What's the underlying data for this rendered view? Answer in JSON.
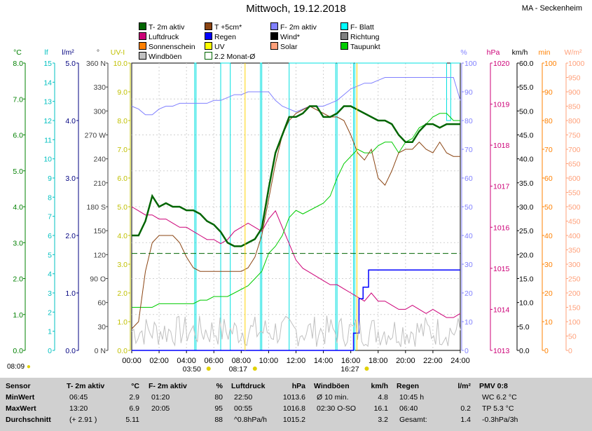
{
  "title": "Mittwoch, 19.12.2018",
  "station": "MA - Seckenheim",
  "legend": [
    {
      "label": "T- 2m aktiv",
      "color": "#006400"
    },
    {
      "label": "T +5cm*",
      "color": "#8b4513"
    },
    {
      "label": "F- 2m aktiv",
      "color": "#8080ff"
    },
    {
      "label": "F- Blatt",
      "color": "#00ffff"
    },
    {
      "label": "Luftdruck",
      "color": "#cc0077"
    },
    {
      "label": "Regen",
      "color": "#0000ff"
    },
    {
      "label": "Wind*",
      "color": "#000000"
    },
    {
      "label": "Richtung",
      "color": "#808080"
    },
    {
      "label": "Sonnenschein",
      "color": "#ff8000"
    },
    {
      "label": "UV",
      "color": "#ffff00"
    },
    {
      "label": "Solar",
      "color": "#ffa07a"
    },
    {
      "label": "Taupunkt",
      "color": "#00cc00"
    },
    {
      "label": "Windböen",
      "color": "#c0c0c0"
    },
    {
      "label": "2.2 Monat-Ø",
      "color": "#006400"
    }
  ],
  "axes": {
    "c": {
      "unit": "°C",
      "color": "#008000",
      "ticks": [
        "8.0",
        "7.0",
        "6.0",
        "5.0",
        "4.0",
        "3.0",
        "2.0",
        "1.0",
        "0.0"
      ]
    },
    "lf": {
      "unit": "lf",
      "color": "#00c0c0",
      "ticks": [
        "15",
        "14",
        "13",
        "12",
        "11",
        "10",
        "9",
        "8",
        "7",
        "6",
        "5",
        "4",
        "3",
        "2",
        "1",
        "0"
      ]
    },
    "lm": {
      "unit": "l/m²",
      "color": "#000080",
      "ticks": [
        "5.0",
        "4.0",
        "3.0",
        "2.0",
        "1.0",
        "0.0"
      ]
    },
    "dir": {
      "unit": "°",
      "color": "#404040",
      "ticks": [
        "360 N",
        "330",
        "300",
        "270 W",
        "240",
        "210",
        "180 S",
        "150",
        "120",
        "90 O",
        "60",
        "30",
        "0 N"
      ]
    },
    "uvi": {
      "unit": "UV-I",
      "color": "#c0c000",
      "ticks": [
        "10.0",
        "9.0",
        "8.0",
        "7.0",
        "6.0",
        "5.0",
        "4.0",
        "3.0",
        "2.0",
        "1.0",
        "0.0"
      ]
    },
    "pct": {
      "unit": "%",
      "color": "#8080ff",
      "ticks": [
        "100",
        "90",
        "80",
        "70",
        "60",
        "50",
        "40",
        "30",
        "20",
        "10",
        "0"
      ]
    },
    "hpa": {
      "unit": "hPa",
      "color": "#cc0077",
      "ticks": [
        "1020",
        "1019",
        "1018",
        "1017",
        "1016",
        "1015",
        "1014",
        "1013"
      ]
    },
    "kmh": {
      "unit": "km/h",
      "color": "#000000",
      "ticks": [
        "60.0",
        "55.0",
        "50.0",
        "45.0",
        "40.0",
        "35.0",
        "30.0",
        "25.0",
        "20.0",
        "15.0",
        "10.0",
        "5.0",
        "0.0"
      ]
    },
    "min": {
      "unit": "min",
      "color": "#ff8000",
      "ticks": [
        "100",
        "90",
        "80",
        "70",
        "60",
        "50",
        "40",
        "30",
        "20",
        "10",
        "0"
      ]
    },
    "wm2": {
      "unit": "W/m²",
      "color": "#ffa07a",
      "ticks": [
        "1000",
        "950",
        "900",
        "850",
        "800",
        "750",
        "700",
        "650",
        "600",
        "550",
        "500",
        "450",
        "400",
        "350",
        "300",
        "250",
        "200",
        "150",
        "100",
        "50",
        "0"
      ]
    }
  },
  "x_ticks": [
    "00:00",
    "02:00",
    "04:00",
    "06:00",
    "08:00",
    "10:00",
    "12:00",
    "14:00",
    "16:00",
    "18:00",
    "20:00",
    "22:00",
    "24:00"
  ],
  "sun": {
    "sunrise_left": "08:09",
    "dawn": "03:50",
    "rise": "08:17",
    "set": "16:27"
  },
  "chart_data": {
    "type": "line",
    "x_unit": "hours",
    "xlim": [
      0,
      24
    ],
    "series": [
      {
        "name": "T- 2m aktiv",
        "axis": "°C",
        "ylim": [
          0,
          8
        ],
        "x": [
          0,
          0.5,
          1,
          1.5,
          2,
          2.5,
          3,
          3.5,
          4,
          4.5,
          5,
          5.5,
          6,
          6.5,
          7,
          7.5,
          8,
          8.5,
          9,
          9.5,
          10,
          10.5,
          11,
          11.5,
          12,
          12.5,
          13,
          13.5,
          14,
          14.5,
          15,
          15.5,
          16,
          16.5,
          17,
          17.5,
          18,
          18.5,
          19,
          19.5,
          20,
          20.5,
          21,
          21.5,
          22,
          22.5,
          23,
          23.5,
          24
        ],
        "y": [
          3.2,
          3.2,
          3.6,
          4.3,
          4.0,
          4.1,
          4.0,
          4.0,
          3.9,
          3.9,
          3.8,
          3.6,
          3.5,
          3.3,
          3.0,
          2.9,
          2.9,
          3.0,
          3.1,
          3.4,
          4.5,
          5.5,
          6.0,
          6.5,
          6.5,
          6.6,
          6.8,
          6.8,
          6.5,
          6.5,
          6.6,
          6.8,
          6.8,
          6.7,
          6.6,
          6.5,
          6.4,
          6.4,
          6.3,
          6.0,
          5.8,
          5.8,
          6.1,
          6.3,
          6.3,
          6.2,
          6.3,
          6.3,
          6.3
        ]
      },
      {
        "name": "T +5cm*",
        "axis": "°C",
        "ylim": [
          0,
          8
        ],
        "x": [
          0,
          0.5,
          1,
          1.5,
          2,
          2.5,
          3,
          3.5,
          4,
          4.5,
          5,
          5.5,
          6,
          6.5,
          7,
          7.5,
          8,
          8.5,
          9,
          9.5,
          10,
          10.5,
          11,
          11.5,
          12,
          12.5,
          13,
          13.5,
          14,
          14.5,
          15,
          15.5,
          16,
          16.5,
          17,
          17.5,
          18,
          18.5,
          19,
          19.5,
          20,
          20.5,
          21,
          21.5,
          22,
          22.5,
          23,
          23.5,
          24
        ],
        "y": [
          0.6,
          0.8,
          2.2,
          3.0,
          3.2,
          3.2,
          3.2,
          3.0,
          2.6,
          2.3,
          2.2,
          2.2,
          2.2,
          2.2,
          2.2,
          2.2,
          2.2,
          2.3,
          2.6,
          3.2,
          4.2,
          5.2,
          6.0,
          6.4,
          6.6,
          6.7,
          6.8,
          6.7,
          6.6,
          6.5,
          6.5,
          6.4,
          6.0,
          5.5,
          5.3,
          5.6,
          4.8,
          4.6,
          5.0,
          5.5,
          5.6,
          5.6,
          5.8,
          5.6,
          5.5,
          5.8,
          5.5,
          5.4,
          5.4
        ]
      },
      {
        "name": "F- 2m aktiv",
        "axis": "%",
        "ylim": [
          0,
          100
        ],
        "x": [
          0,
          0.5,
          1,
          1.5,
          2,
          2.5,
          3,
          3.5,
          4,
          4.5,
          5,
          5.5,
          6,
          6.5,
          7,
          7.5,
          8,
          8.5,
          9,
          9.5,
          10,
          10.5,
          11,
          11.5,
          12,
          12.5,
          13,
          13.5,
          14,
          14.5,
          15,
          15.5,
          16,
          16.5,
          17,
          17.5,
          18,
          18.5,
          19,
          19.5,
          20,
          20.5,
          21,
          21.5,
          22,
          22.5,
          23,
          23.5,
          24
        ],
        "y": [
          85,
          84,
          82,
          82,
          84,
          85,
          85,
          86,
          86,
          86,
          86,
          86,
          87,
          87,
          88,
          89,
          89,
          90,
          90,
          90,
          90,
          87,
          85,
          84,
          83,
          84,
          85,
          85,
          85,
          86,
          87,
          89,
          91,
          92,
          93,
          93,
          94,
          95,
          95,
          95,
          95,
          95,
          95,
          95,
          95,
          95,
          95,
          95,
          87
        ]
      },
      {
        "name": "Luftdruck",
        "axis": "hPa",
        "ylim": [
          1013,
          1020
        ],
        "x": [
          0,
          0.5,
          1,
          1.5,
          2,
          2.5,
          3,
          3.5,
          4,
          4.5,
          5,
          5.5,
          6,
          6.5,
          7,
          7.5,
          8,
          8.5,
          9,
          9.5,
          10,
          10.5,
          11,
          11.5,
          12,
          12.5,
          13,
          13.5,
          14,
          14.5,
          15,
          15.5,
          16,
          16.5,
          17,
          17.5,
          18,
          18.5,
          19,
          19.5,
          20,
          20.5,
          21,
          21.5,
          22,
          22.5,
          23,
          23.5,
          24
        ],
        "y": [
          1016.5,
          1016.4,
          1016.3,
          1016.3,
          1016.2,
          1016.2,
          1016.1,
          1016.0,
          1016.0,
          1015.9,
          1015.8,
          1015.7,
          1015.7,
          1015.6,
          1015.7,
          1015.9,
          1016.0,
          1016.1,
          1016.0,
          1015.9,
          1016.2,
          1016.4,
          1016.0,
          1015.6,
          1015.2,
          1015.0,
          1014.9,
          1014.8,
          1014.7,
          1014.6,
          1014.6,
          1014.5,
          1014.4,
          1014.3,
          1014.2,
          1014.4,
          1014.2,
          1014.2,
          1014.1,
          1014.0,
          1014.0,
          1014.1,
          1014.0,
          1013.9,
          1014.0,
          1013.9,
          1013.8,
          1013.8,
          1013.9
        ]
      },
      {
        "name": "Taupunkt",
        "axis": "°C",
        "ylim": [
          0,
          8
        ],
        "x": [
          0,
          0.5,
          1,
          1.5,
          2,
          2.5,
          3,
          3.5,
          4,
          4.5,
          5,
          5.5,
          6,
          6.5,
          7,
          7.5,
          8,
          8.5,
          9,
          9.5,
          10,
          10.5,
          11,
          11.5,
          12,
          12.5,
          13,
          13.5,
          14,
          14.5,
          15,
          15.5,
          16,
          16.5,
          17,
          17.5,
          18,
          18.5,
          19,
          19.5,
          20,
          20.5,
          21,
          21.5,
          22,
          22.5,
          23,
          23.5,
          24
        ],
        "y": [
          1.2,
          1.2,
          1.2,
          1.2,
          1.3,
          1.3,
          1.3,
          1.3,
          1.3,
          1.3,
          1.4,
          1.4,
          1.5,
          1.5,
          1.5,
          1.6,
          1.7,
          1.8,
          2.0,
          2.2,
          2.7,
          2.9,
          3.2,
          3.7,
          3.9,
          3.8,
          3.9,
          4.0,
          4.1,
          4.3,
          4.8,
          5.2,
          5.4,
          5.6,
          5.5,
          5.5,
          5.7,
          5.8,
          5.8,
          5.5,
          5.8,
          5.9,
          6.2,
          6.3,
          6.5,
          6.6,
          6.6,
          6.4,
          6.4
        ]
      },
      {
        "name": "2.2 Monat-Ø",
        "axis": "°C",
        "ylim": [
          0,
          8
        ],
        "x": [
          0,
          24
        ],
        "y": [
          2.7,
          2.7
        ]
      },
      {
        "name": "Regen",
        "axis": "l/m²",
        "ylim": [
          0,
          5
        ],
        "x": [
          0,
          15.5,
          16,
          16.2,
          16.6,
          16.9,
          17.3,
          17.6,
          18,
          24
        ],
        "y": [
          0,
          0,
          0,
          0.3,
          0.9,
          1.1,
          1.4,
          1.4,
          1.4,
          1.4
        ]
      },
      {
        "name": "F- Blatt",
        "axis": "lf",
        "ylim": [
          0,
          15
        ],
        "x": [
          0,
          4.6,
          4.6,
          4.7,
          4.7,
          6.5,
          6.5,
          7.2,
          7.2,
          9.4,
          9.4,
          9.5,
          9.5,
          11.5,
          11.5,
          14.9,
          14.9,
          15.0,
          15.0,
          16.2,
          16.2,
          16.3,
          16.3,
          23.0,
          23.0,
          23.3,
          23.3,
          24
        ],
        "y": [
          0,
          0,
          15,
          15,
          0,
          0,
          15,
          15,
          0,
          0,
          15,
          15,
          0,
          0,
          15,
          15,
          0,
          0,
          15,
          15,
          0,
          0,
          15,
          15,
          12,
          12,
          15,
          15
        ]
      }
    ],
    "vlines_hours": [
      8.28,
      16.45
    ]
  },
  "table": {
    "sensor_header": "Sensor",
    "row_labels": [
      "MinWert",
      "MaxWert",
      "Durchschnitt"
    ],
    "cols": [
      {
        "title": "T- 2m aktiv",
        "unit": "°C",
        "times": [
          "06:45",
          "13:20",
          "(+ 2.91 )"
        ],
        "values": [
          "2.9",
          "6.9",
          "5.11"
        ]
      },
      {
        "title": "F- 2m aktiv",
        "unit": "%",
        "times": [
          "01:20",
          "20:05",
          ""
        ],
        "values": [
          "80",
          "95",
          "88"
        ]
      },
      {
        "title": "Luftdruck",
        "unit": "hPa",
        "times": [
          "22:50",
          "00:55",
          "^0.8hPa/h"
        ],
        "values": [
          "1013.6",
          "1016.8",
          "1015.2"
        ]
      },
      {
        "title": "Windböen",
        "unit": "km/h",
        "times": [
          "Ø 10 min.",
          "02:30 O-SO",
          ""
        ],
        "values": [
          "4.8",
          "16.1",
          "3.2"
        ]
      },
      {
        "title": "Regen",
        "unit": "l/m²",
        "times": [
          "10:45 h",
          "06:40",
          "Gesamt:"
        ],
        "values": [
          "",
          "0.2",
          "1.4"
        ]
      },
      {
        "title": "PMV 0:8",
        "unit": "",
        "times": [
          "WC 6.2 °C",
          "TP 5.3 °C",
          "-0.3hPa/3h"
        ],
        "values": [
          "",
          "",
          ""
        ]
      }
    ]
  }
}
